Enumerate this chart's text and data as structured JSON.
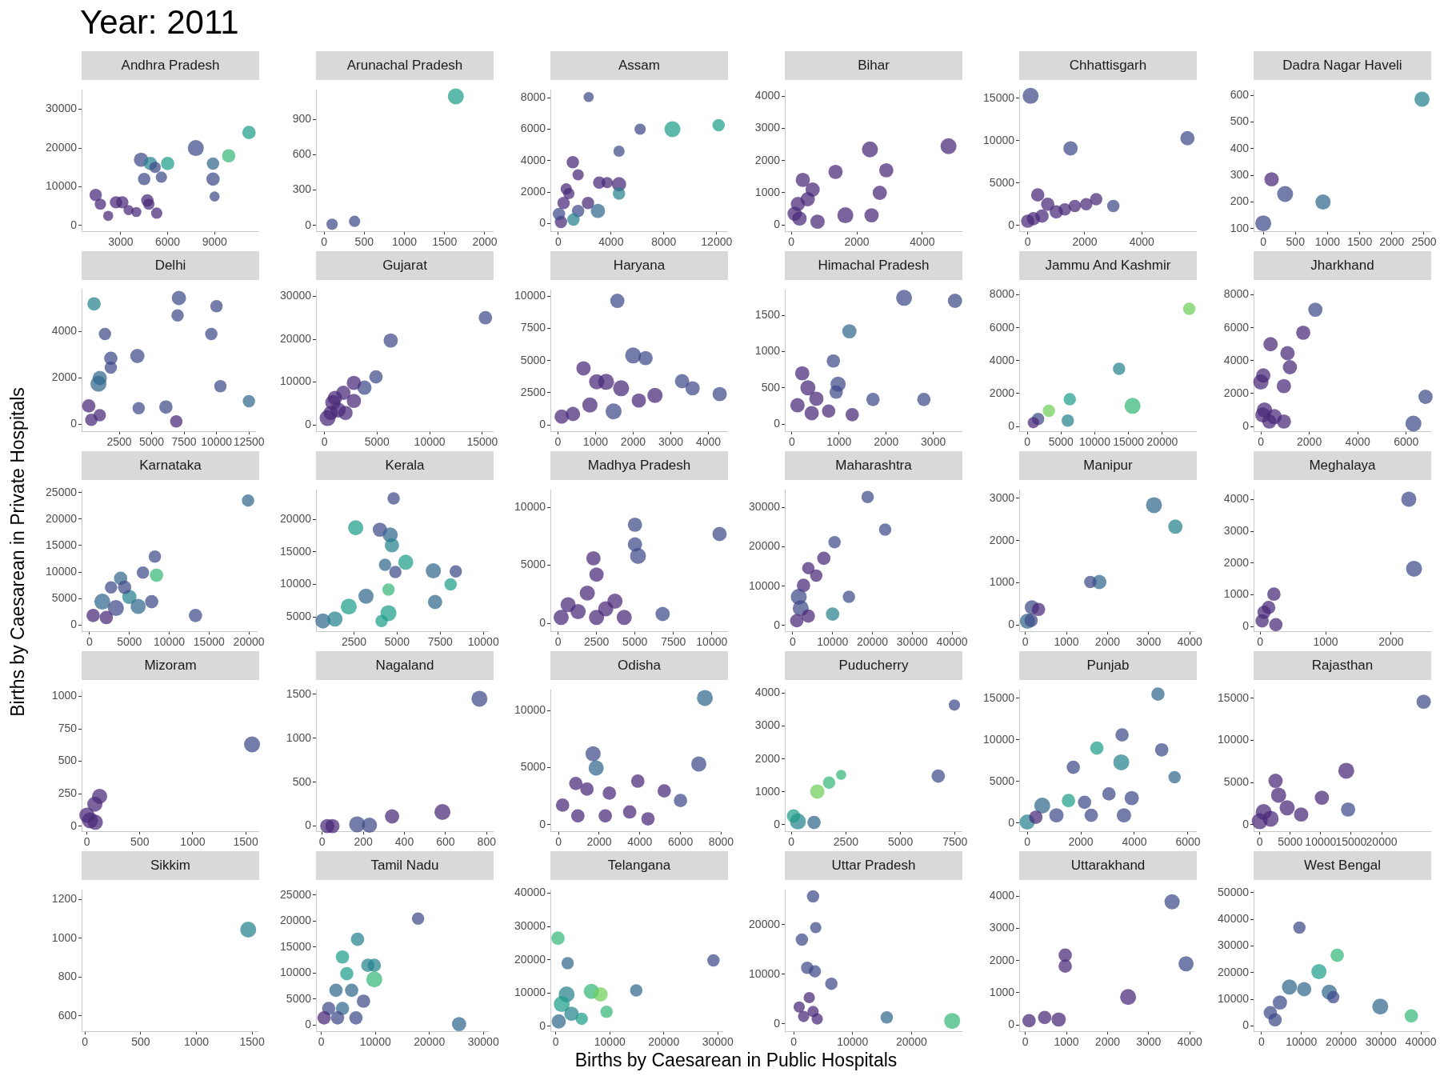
{
  "chart_data": [
    {
      "type": "other",
      "title": "Year: 2011",
      "xlabel": "Births by Caesarean in Public Hospitals",
      "ylabel": "Births by Caesarean in Private Hospitals"
    },
    {
      "type": "bubble",
      "title": "Andhra Pradesh",
      "xlim": [
        500,
        11800
      ],
      "ylim": [
        -1500,
        35000
      ],
      "x": [
        1400,
        1700,
        2200,
        2700,
        3100,
        3500,
        4000,
        4300,
        4500,
        4700,
        4900,
        5200,
        5300,
        5600,
        6000,
        7800,
        8900,
        9000,
        8900,
        9900,
        11200,
        4800
      ],
      "values": [
        7900,
        5500,
        2500,
        6000,
        6000,
        4000,
        3500,
        17000,
        12000,
        6500,
        16000,
        15000,
        3200,
        12500,
        16000,
        20000,
        12000,
        7500,
        16000,
        18000,
        24000,
        5500
      ],
      "sizes": [
        0.6,
        0.5,
        0.4,
        0.6,
        0.6,
        0.4,
        0.4,
        0.8,
        0.6,
        0.6,
        0.7,
        0.5,
        0.5,
        0.5,
        0.7,
        1,
        0.7,
        0.4,
        0.6,
        0.7,
        0.7,
        0.5
      ],
      "colors": [
        "#482878",
        "#482878",
        "#482878",
        "#482878",
        "#482878",
        "#482878",
        "#482878",
        "#3e4a89",
        "#3e4a89",
        "#482878",
        "#26828e",
        "#3e4a89",
        "#482878",
        "#3e4a89",
        "#1f9e89",
        "#3e4a89",
        "#3e4a89",
        "#3e4a89",
        "#31688e",
        "#35b779",
        "#1f9e89",
        "#482878"
      ],
      "xticks": [
        3000,
        6000,
        9000
      ],
      "yticks": [
        0,
        10000,
        20000,
        30000
      ]
    },
    {
      "type": "bubble",
      "title": "Arunachal Pradesh",
      "xlim": [
        -100,
        2100
      ],
      "ylim": [
        -50,
        1150
      ],
      "x": [
        100,
        380,
        1640
      ],
      "values": [
        10,
        35,
        1095
      ],
      "sizes": [
        0.5,
        0.5,
        1
      ],
      "colors": [
        "#3e4a89",
        "#3e4a89",
        "#1f9e89"
      ],
      "xticks": [
        0,
        500,
        1000,
        1500,
        2000
      ],
      "yticks": [
        0,
        300,
        600,
        900
      ]
    },
    {
      "type": "bubble",
      "title": "Assam",
      "xlim": [
        -600,
        12800
      ],
      "ylim": [
        -500,
        8500
      ],
      "x": [
        2300,
        6200,
        8650,
        12150,
        4600,
        1100,
        1500,
        3100,
        3700,
        4600,
        400,
        800,
        1500,
        2250,
        3000,
        200,
        1150,
        4600,
        600,
        50
      ],
      "values": [
        8050,
        6000,
        6000,
        6250,
        4600,
        3900,
        3100,
        2600,
        2600,
        2500,
        1300,
        1900,
        800,
        1300,
        800,
        100,
        250,
        1900,
        2200,
        600
      ],
      "sizes": [
        0.4,
        0.5,
        1,
        0.6,
        0.5,
        0.6,
        0.5,
        0.6,
        0.5,
        0.8,
        0.6,
        0.5,
        0.6,
        0.6,
        0.8,
        0.6,
        0.6,
        0.6,
        0.5,
        0.6
      ],
      "colors": [
        "#3e4a89",
        "#3e4a89",
        "#1f9e89",
        "#1f9e89",
        "#3e4a89",
        "#482878",
        "#482878",
        "#482878",
        "#482878",
        "#482878",
        "#482878",
        "#482878",
        "#3e4a89",
        "#482878",
        "#31688e",
        "#482878",
        "#26828e",
        "#26828e",
        "#482878",
        "#3e4a89"
      ],
      "xticks": [
        0,
        4000,
        8000,
        12000
      ],
      "yticks": [
        0,
        2000,
        4000,
        6000,
        8000
      ]
    },
    {
      "type": "bubble",
      "title": "Bihar",
      "xlim": [
        -200,
        5200
      ],
      "ylim": [
        -200,
        4200
      ],
      "x": [
        2400,
        4800,
        2900,
        1350,
        1650,
        2450,
        2700,
        350,
        200,
        500,
        250,
        100,
        650,
        800
      ],
      "values": [
        2350,
        2450,
        1700,
        1650,
        300,
        300,
        1000,
        1400,
        650,
        800,
        200,
        350,
        1100,
        100
      ],
      "sizes": [
        1,
        1,
        0.8,
        0.8,
        1,
        0.8,
        0.8,
        0.8,
        0.8,
        0.8,
        0.8,
        0.8,
        0.8,
        0.8
      ],
      "colors": [
        "#482878",
        "#482878",
        "#482878",
        "#482878",
        "#482878",
        "#482878",
        "#482878",
        "#482878",
        "#482878",
        "#482878",
        "#482878",
        "#482878",
        "#482878",
        "#482878"
      ],
      "xticks": [
        0,
        2000,
        4000
      ],
      "yticks": [
        0,
        1000,
        2000,
        3000,
        4000
      ]
    },
    {
      "type": "bubble",
      "title": "Chhattisgarh",
      "xlim": [
        -300,
        5900
      ],
      "ylim": [
        -700,
        16000
      ],
      "x": [
        100,
        1500,
        5600,
        3000,
        2400,
        350,
        700,
        1000,
        1300,
        200,
        1650,
        2050,
        0,
        500
      ],
      "values": [
        15300,
        9100,
        10300,
        2300,
        3100,
        3600,
        2500,
        1600,
        1900,
        800,
        2300,
        2500,
        500,
        1100
      ],
      "sizes": [
        1,
        0.8,
        0.8,
        0.6,
        0.6,
        0.7,
        0.7,
        0.7,
        0.6,
        0.7,
        0.6,
        0.6,
        0.7,
        0.7
      ],
      "colors": [
        "#3e4a89",
        "#3e4a89",
        "#3e4a89",
        "#3e4a89",
        "#482878",
        "#482878",
        "#482878",
        "#482878",
        "#482878",
        "#482878",
        "#482878",
        "#482878",
        "#482878",
        "#482878"
      ],
      "xticks": [
        0,
        2000,
        4000
      ],
      "yticks": [
        0,
        5000,
        10000,
        15000
      ]
    },
    {
      "type": "bubble",
      "title": "Dadra Nagar Haveli",
      "xlim": [
        -150,
        2600
      ],
      "ylim": [
        90,
        620
      ],
      "x": [
        0,
        130,
        340,
        930,
        2470
      ],
      "values": [
        120,
        285,
        230,
        200,
        585
      ],
      "sizes": [
        1,
        0.8,
        1,
        0.9,
        0.9
      ],
      "colors": [
        "#3e4a89",
        "#482878",
        "#3e4a89",
        "#31688e",
        "#26828e"
      ],
      "xticks": [
        0,
        500,
        1000,
        1500,
        2000,
        2500
      ],
      "yticks": [
        100,
        200,
        300,
        400,
        500,
        600
      ]
    },
    {
      "type": "bubble",
      "title": "Delhi",
      "xlim": [
        -400,
        13000
      ],
      "ylim": [
        -300,
        5800
      ],
      "x": [
        560,
        7100,
        7000,
        10000,
        9600,
        1400,
        1850,
        1850,
        900,
        1000,
        3900,
        10300,
        12500,
        4000,
        6100,
        6900,
        150,
        350,
        1000
      ],
      "values": [
        5200,
        5450,
        4700,
        5100,
        3900,
        3900,
        2850,
        2450,
        1750,
        2000,
        2950,
        1650,
        1000,
        700,
        750,
        130,
        800,
        200,
        400
      ],
      "sizes": [
        0.7,
        0.8,
        0.6,
        0.6,
        0.6,
        0.6,
        0.7,
        0.6,
        1,
        0.8,
        0.8,
        0.6,
        0.6,
        0.6,
        0.7,
        0.6,
        0.7,
        0.6,
        0.6
      ],
      "colors": [
        "#26828e",
        "#3e4a89",
        "#3e4a89",
        "#3e4a89",
        "#3e4a89",
        "#3e4a89",
        "#3e4a89",
        "#3e4a89",
        "#31688e",
        "#31688e",
        "#3e4a89",
        "#3e4a89",
        "#31688e",
        "#3e4a89",
        "#3e4a89",
        "#482878",
        "#482878",
        "#482878",
        "#482878"
      ],
      "xticks": [
        2500,
        5000,
        7500,
        10000,
        12500
      ],
      "yticks": [
        0,
        2000,
        4000
      ]
    },
    {
      "type": "bubble",
      "title": "Gujarat",
      "xlim": [
        -800,
        16000
      ],
      "ylim": [
        -1500,
        31500
      ],
      "x": [
        15300,
        6300,
        4900,
        3800,
        2800,
        1800,
        800,
        1300,
        300,
        2000,
        600,
        2800,
        1000
      ],
      "values": [
        25000,
        19700,
        11200,
        8700,
        9800,
        7500,
        5200,
        3500,
        1600,
        2800,
        2800,
        5600,
        6300
      ],
      "sizes": [
        0.7,
        0.8,
        0.7,
        0.8,
        0.8,
        0.8,
        0.9,
        0.9,
        1,
        0.8,
        0.8,
        0.8,
        0.8
      ],
      "colors": [
        "#3e4a89",
        "#3e4a89",
        "#3e4a89",
        "#3e4a89",
        "#482878",
        "#482878",
        "#482878",
        "#482878",
        "#482878",
        "#482878",
        "#482878",
        "#482878",
        "#482878"
      ],
      "xticks": [
        0,
        5000,
        10000,
        15000
      ],
      "yticks": [
        0,
        10000,
        20000,
        30000
      ]
    },
    {
      "type": "bubble",
      "title": "Haryana",
      "xlim": [
        -200,
        4500
      ],
      "ylim": [
        -500,
        10500
      ],
      "x": [
        1580,
        2000,
        2330,
        3300,
        3580,
        4300,
        680,
        1280,
        1680,
        2580,
        1480,
        850,
        400,
        100,
        2150,
        1030
      ],
      "values": [
        9650,
        5400,
        5200,
        3400,
        2850,
        2400,
        4400,
        3350,
        2850,
        2300,
        1050,
        1550,
        850,
        650,
        1900,
        3350
      ],
      "sizes": [
        0.8,
        1,
        0.8,
        0.8,
        0.8,
        0.8,
        0.8,
        1,
        1,
        0.9,
        1,
        0.9,
        0.8,
        0.8,
        0.8,
        0.9
      ],
      "colors": [
        "#3e4a89",
        "#3e4a89",
        "#3e4a89",
        "#3e4a89",
        "#3e4a89",
        "#3e4a89",
        "#482878",
        "#482878",
        "#482878",
        "#482878",
        "#3e4a89",
        "#482878",
        "#482878",
        "#482878",
        "#482878",
        "#482878"
      ],
      "xticks": [
        0,
        1000,
        2000,
        3000,
        4000
      ],
      "yticks": [
        0,
        2500,
        5000,
        7500,
        10000
      ]
    },
    {
      "type": "bubble",
      "title": "Himachal Pradesh",
      "xlim": [
        -150,
        3600
      ],
      "ylim": [
        -100,
        1850
      ],
      "x": [
        2380,
        3460,
        1220,
        880,
        940,
        980,
        340,
        220,
        420,
        780,
        1280,
        1720,
        2800,
        120,
        520
      ],
      "values": [
        1740,
        1700,
        1280,
        870,
        440,
        550,
        500,
        700,
        150,
        180,
        130,
        340,
        340,
        260,
        350
      ],
      "sizes": [
        1,
        0.8,
        0.8,
        0.7,
        0.7,
        0.9,
        0.9,
        0.8,
        0.8,
        0.7,
        0.7,
        0.7,
        0.7,
        0.8,
        0.8
      ],
      "colors": [
        "#3e4a89",
        "#3e4a89",
        "#31688e",
        "#3e4a89",
        "#3e4a89",
        "#3e4a89",
        "#482878",
        "#482878",
        "#482878",
        "#482878",
        "#482878",
        "#3e4a89",
        "#3e4a89",
        "#482878",
        "#482878"
      ],
      "xticks": [
        0,
        1000,
        2000,
        3000
      ],
      "yticks": [
        0,
        500,
        1000,
        1500
      ]
    },
    {
      "type": "bubble",
      "title": "Jammu And Kashmir",
      "xlim": [
        -1200,
        25000
      ],
      "ylim": [
        -300,
        8300
      ],
      "x": [
        24000,
        13600,
        15600,
        6300,
        6000,
        3200,
        1600,
        900
      ],
      "values": [
        7150,
        3500,
        1250,
        1650,
        350,
        950,
        450,
        230
      ],
      "sizes": [
        0.6,
        0.6,
        1,
        0.6,
        0.6,
        0.6,
        0.6,
        0.5
      ],
      "colors": [
        "#6ece58",
        "#26828e",
        "#35b779",
        "#1f9e89",
        "#26828e",
        "#6ece58",
        "#3e4a89",
        "#482878"
      ],
      "xticks": [
        0,
        5000,
        10000,
        15000,
        20000
      ],
      "yticks": [
        0,
        2000,
        4000,
        6000,
        8000
      ]
    },
    {
      "type": "bubble",
      "title": "Jharkhand",
      "xlim": [
        -300,
        7000
      ],
      "ylim": [
        -300,
        8300
      ],
      "x": [
        2250,
        1750,
        400,
        1100,
        1200,
        0,
        100,
        950,
        6800,
        6300,
        150,
        550,
        950,
        350,
        80
      ],
      "values": [
        7100,
        5700,
        5000,
        4450,
        3600,
        2700,
        3100,
        2450,
        1800,
        170,
        1000,
        600,
        300,
        300,
        700
      ],
      "sizes": [
        0.8,
        0.8,
        0.8,
        0.8,
        0.8,
        0.9,
        0.8,
        0.8,
        0.8,
        1,
        0.9,
        0.9,
        0.8,
        0.8,
        0.9
      ],
      "colors": [
        "#3e4a89",
        "#482878",
        "#482878",
        "#482878",
        "#482878",
        "#482878",
        "#482878",
        "#482878",
        "#3e4a89",
        "#3e4a89",
        "#482878",
        "#482878",
        "#482878",
        "#482878",
        "#482878"
      ],
      "xticks": [
        0,
        2000,
        4000,
        6000
      ],
      "yticks": [
        0,
        2000,
        4000,
        6000,
        8000
      ]
    },
    {
      "type": "bubble",
      "title": "Karnataka",
      "xlim": [
        -1000,
        21000
      ],
      "ylim": [
        -1200,
        25500
      ],
      "x": [
        19900,
        8200,
        8400,
        6700,
        13300,
        3900,
        2700,
        5000,
        1600,
        3300,
        450,
        6100,
        7800,
        4400,
        2100
      ],
      "values": [
        23500,
        12900,
        9400,
        9900,
        1800,
        8800,
        7100,
        5300,
        4400,
        3200,
        1800,
        3500,
        4400,
        7100,
        1400
      ],
      "sizes": [
        0.6,
        0.6,
        0.7,
        0.6,
        0.7,
        0.7,
        0.6,
        0.8,
        1,
        1,
        0.7,
        0.9,
        0.7,
        0.7,
        0.7
      ],
      "colors": [
        "#31688e",
        "#3e4a89",
        "#35b779",
        "#3e4a89",
        "#3e4a89",
        "#31688e",
        "#3e4a89",
        "#26828e",
        "#31688e",
        "#3e4a89",
        "#482878",
        "#31688e",
        "#3e4a89",
        "#3e4a89",
        "#482878"
      ],
      "xticks": [
        0,
        5000,
        10000,
        15000,
        20000
      ],
      "yticks": [
        0,
        5000,
        10000,
        15000,
        20000,
        25000
      ]
    },
    {
      "type": "bubble",
      "title": "Kerala",
      "xlim": [
        300,
        10300
      ],
      "ylim": [
        2800,
        24500
      ],
      "x": [
        4800,
        2600,
        4000,
        4600,
        4700,
        5500,
        4300,
        4900,
        8400,
        7100,
        3200,
        2200,
        4500,
        7200,
        8100,
        4500,
        700,
        1400,
        4100
      ],
      "values": [
        23200,
        18700,
        18400,
        17600,
        16000,
        13400,
        13000,
        11900,
        12000,
        12100,
        8200,
        6600,
        9200,
        7300,
        10000,
        5600,
        4400,
        4700,
        4400
      ],
      "sizes": [
        0.6,
        0.9,
        0.8,
        0.9,
        0.8,
        0.9,
        0.6,
        0.6,
        0.6,
        0.9,
        0.9,
        1,
        0.6,
        0.8,
        0.6,
        1,
        0.9,
        0.9,
        0.6
      ],
      "colors": [
        "#3e4a89",
        "#1f9e89",
        "#3e4a89",
        "#31688e",
        "#26828e",
        "#1f9e89",
        "#31688e",
        "#3e4a89",
        "#3e4a89",
        "#31688e",
        "#31688e",
        "#1f9e89",
        "#35b779",
        "#31688e",
        "#1f9e89",
        "#1f9e89",
        "#31688e",
        "#26828e",
        "#1f9e89"
      ],
      "xticks": [
        2500,
        5000,
        7500,
        10000
      ],
      "yticks": [
        5000,
        10000,
        15000,
        20000
      ]
    },
    {
      "type": "bubble",
      "title": "Madhya Pradesh",
      "xlim": [
        -500,
        11000
      ],
      "ylim": [
        -700,
        11500
      ],
      "x": [
        10500,
        5000,
        5200,
        5000,
        6800,
        2300,
        2500,
        1900,
        650,
        1300,
        3100,
        3700,
        200,
        4300,
        2500
      ],
      "values": [
        7700,
        8500,
        5800,
        6800,
        800,
        5600,
        4200,
        2600,
        1600,
        1000,
        1250,
        1900,
        500,
        500,
        500
      ],
      "sizes": [
        0.8,
        0.8,
        1,
        0.8,
        0.8,
        0.8,
        0.8,
        0.9,
        0.9,
        0.9,
        0.9,
        0.9,
        0.9,
        0.9,
        0.9
      ],
      "colors": [
        "#3e4a89",
        "#3e4a89",
        "#3e4a89",
        "#3e4a89",
        "#3e4a89",
        "#482878",
        "#482878",
        "#482878",
        "#482878",
        "#482878",
        "#482878",
        "#482878",
        "#482878",
        "#482878",
        "#482878"
      ],
      "xticks": [
        0,
        2500,
        5000,
        7500,
        10000
      ],
      "yticks": [
        0,
        5000,
        10000
      ]
    },
    {
      "type": "bubble",
      "title": "Maharashtra",
      "xlim": [
        -2000,
        42000
      ],
      "ylim": [
        -1500,
        34500
      ],
      "x": [
        18800,
        23200,
        10500,
        7800,
        3900,
        5900,
        2700,
        1500,
        2000,
        3900,
        10000,
        14100,
        1000
      ],
      "values": [
        32700,
        24400,
        21200,
        17100,
        14600,
        12700,
        10200,
        7300,
        4400,
        2400,
        2900,
        7300,
        1200
      ],
      "sizes": [
        0.6,
        0.6,
        0.6,
        0.7,
        0.6,
        0.6,
        0.7,
        1,
        1,
        0.7,
        0.7,
        0.6,
        0.7
      ],
      "colors": [
        "#3e4a89",
        "#3e4a89",
        "#3e4a89",
        "#482878",
        "#482878",
        "#482878",
        "#482878",
        "#3e4a89",
        "#3e4a89",
        "#482878",
        "#26828e",
        "#3e4a89",
        "#482878"
      ],
      "xticks": [
        0,
        10000,
        20000,
        30000,
        40000
      ],
      "yticks": [
        0,
        10000,
        20000,
        30000
      ]
    },
    {
      "type": "bubble",
      "title": "Manipur",
      "xlim": [
        -150,
        4100
      ],
      "ylim": [
        -150,
        3200
      ],
      "x": [
        3130,
        3650,
        1800,
        1580,
        160,
        320,
        50,
        140
      ],
      "values": [
        2840,
        2330,
        1020,
        1020,
        420,
        370,
        90,
        110
      ],
      "sizes": [
        1,
        0.8,
        0.8,
        0.6,
        0.8,
        0.7,
        0.9,
        0.7
      ],
      "colors": [
        "#31688e",
        "#26828e",
        "#31688e",
        "#3e4a89",
        "#3e4a89",
        "#482878",
        "#31688e",
        "#3e4a89"
      ],
      "xticks": [
        0,
        1000,
        2000,
        3000,
        4000
      ],
      "yticks": [
        0,
        1000,
        2000,
        3000
      ]
    },
    {
      "type": "bubble",
      "title": "Meghalaya",
      "xlim": [
        -100,
        2600
      ],
      "ylim": [
        -150,
        4300
      ],
      "x": [
        2270,
        2350,
        210,
        60,
        130,
        240,
        30
      ],
      "values": [
        4010,
        1820,
        1020,
        450,
        600,
        60,
        180
      ],
      "sizes": [
        0.9,
        1,
        0.7,
        0.7,
        0.7,
        0.7,
        0.7
      ],
      "colors": [
        "#3e4a89",
        "#3e4a89",
        "#482878",
        "#482878",
        "#482878",
        "#482878",
        "#482878"
      ],
      "xticks": [
        0,
        1000,
        2000
      ],
      "yticks": [
        0,
        1000,
        2000,
        3000,
        4000
      ]
    },
    {
      "type": "bubble",
      "title": "Mizoram",
      "xlim": [
        -50,
        1620
      ],
      "ylim": [
        -40,
        1050
      ],
      "x": [
        1560,
        120,
        75,
        30,
        80,
        0
      ],
      "values": [
        630,
        230,
        170,
        45,
        30,
        85
      ],
      "sizes": [
        1,
        0.9,
        0.9,
        1,
        0.9,
        0.9
      ],
      "colors": [
        "#3e4a89",
        "#482878",
        "#482878",
        "#482878",
        "#482878",
        "#482878"
      ],
      "xticks": [
        0,
        500,
        1000,
        1500
      ],
      "yticks": [
        0,
        250,
        500,
        750,
        1000
      ]
    },
    {
      "type": "bubble",
      "title": "Nagaland",
      "xlim": [
        -30,
        830
      ],
      "ylim": [
        -60,
        1550
      ],
      "x": [
        765,
        585,
        340,
        170,
        230,
        25,
        50
      ],
      "values": [
        1450,
        160,
        110,
        20,
        10,
        0,
        0
      ],
      "sizes": [
        1,
        1,
        0.8,
        1,
        0.9,
        0.8,
        0.8
      ],
      "colors": [
        "#3e4a89",
        "#482878",
        "#482878",
        "#3e4a89",
        "#3e4a89",
        "#482878",
        "#482878"
      ],
      "xticks": [
        0,
        200,
        400,
        600,
        800
      ],
      "yticks": [
        0,
        500,
        1000,
        1500
      ]
    },
    {
      "type": "bubble",
      "title": "Odisha",
      "xlim": [
        -400,
        8000
      ],
      "ylim": [
        -600,
        11800
      ],
      "x": [
        7200,
        6900,
        1700,
        1850,
        850,
        1400,
        2500,
        3900,
        5200,
        6000,
        200,
        950,
        2300,
        3500,
        4400
      ],
      "values": [
        11100,
        5300,
        6200,
        4950,
        3600,
        3100,
        2750,
        3800,
        2950,
        2100,
        1700,
        750,
        750,
        1100,
        500
      ],
      "sizes": [
        1,
        0.9,
        0.9,
        0.9,
        0.7,
        0.7,
        0.7,
        0.7,
        0.7,
        0.7,
        0.7,
        0.7,
        0.7,
        0.7,
        0.7
      ],
      "colors": [
        "#31688e",
        "#3e4a89",
        "#3e4a89",
        "#31688e",
        "#482878",
        "#482878",
        "#482878",
        "#482878",
        "#482878",
        "#3e4a89",
        "#482878",
        "#482878",
        "#482878",
        "#482878",
        "#482878"
      ],
      "xticks": [
        0,
        2000,
        4000,
        6000,
        8000
      ],
      "yticks": [
        0,
        5000,
        10000
      ]
    },
    {
      "type": "bubble",
      "title": "Puducherry",
      "xlim": [
        -300,
        7800
      ],
      "ylim": [
        -200,
        4100
      ],
      "x": [
        7470,
        6730,
        1190,
        1730,
        2280,
        300,
        100,
        1040
      ],
      "values": [
        3640,
        1480,
        1010,
        1280,
        1520,
        100,
        270,
        70
      ],
      "sizes": [
        0.5,
        0.7,
        0.8,
        0.6,
        0.4,
        1,
        0.7,
        0.7
      ],
      "colors": [
        "#3e4a89",
        "#3e4a89",
        "#6ece58",
        "#35b779",
        "#35b779",
        "#26828e",
        "#1f9e89",
        "#31688e"
      ],
      "xticks": [
        0,
        2500,
        5000,
        7500
      ],
      "yticks": [
        0,
        1000,
        2000,
        3000,
        4000
      ]
    },
    {
      "type": "bubble",
      "title": "Punjab",
      "xlim": [
        -300,
        6300
      ],
      "ylim": [
        -1000,
        16000
      ],
      "x": [
        4880,
        3540,
        5020,
        2600,
        3510,
        5500,
        1720,
        3900,
        3050,
        0,
        560,
        1090,
        2390,
        3610,
        2140,
        1540,
        320
      ],
      "values": [
        15500,
        10600,
        8800,
        9000,
        7300,
        5500,
        6700,
        3000,
        3500,
        120,
        2100,
        930,
        930,
        930,
        2500,
        2700,
        700
      ],
      "sizes": [
        0.7,
        0.7,
        0.7,
        0.7,
        1,
        0.6,
        0.7,
        0.8,
        0.7,
        0.9,
        1,
        0.8,
        0.7,
        0.8,
        0.7,
        0.7,
        0.7
      ],
      "colors": [
        "#31688e",
        "#3e4a89",
        "#3e4a89",
        "#1f9e89",
        "#26828e",
        "#31688e",
        "#3e4a89",
        "#3e4a89",
        "#3e4a89",
        "#26828e",
        "#31688e",
        "#3e4a89",
        "#3e4a89",
        "#3e4a89",
        "#3e4a89",
        "#1f9e89",
        "#482878"
      ],
      "xticks": [
        0,
        2000,
        4000,
        6000
      ],
      "yticks": [
        0,
        5000,
        10000,
        15000
      ]
    },
    {
      "type": "bubble",
      "title": "Rajasthan",
      "xlim": [
        -1000,
        28000
      ],
      "ylim": [
        -800,
        16000
      ],
      "x": [
        26900,
        14200,
        10200,
        14500,
        2600,
        3100,
        4500,
        650,
        1800,
        6800,
        0
      ],
      "values": [
        14600,
        6400,
        3200,
        1800,
        5200,
        3500,
        2000,
        1500,
        700,
        1200,
        400
      ],
      "sizes": [
        0.8,
        1,
        0.8,
        0.8,
        0.8,
        0.9,
        0.9,
        1,
        1,
        0.8,
        1
      ],
      "colors": [
        "#3e4a89",
        "#482878",
        "#482878",
        "#3e4a89",
        "#482878",
        "#482878",
        "#482878",
        "#482878",
        "#482878",
        "#482878",
        "#482878"
      ],
      "xticks": [
        0,
        5000,
        10000,
        15000,
        20000
      ],
      "yticks": [
        0,
        5000,
        10000,
        15000
      ]
    },
    {
      "type": "bubble",
      "title": "Sikkim",
      "xlim": [
        -30,
        1550
      ],
      "ylim": [
        520,
        1250
      ],
      "x": [
        1465
      ],
      "values": [
        1045
      ],
      "sizes": [
        1
      ],
      "colors": [
        "#26828e"
      ],
      "xticks": [
        0,
        500,
        1000,
        1500
      ],
      "yticks": [
        600,
        800,
        1000,
        1200
      ]
    },
    {
      "type": "bubble",
      "title": "Tamil Nadu",
      "xlim": [
        -1000,
        31000
      ],
      "ylim": [
        -1200,
        26000
      ],
      "x": [
        17900,
        25500,
        6700,
        3900,
        9800,
        8600,
        9800,
        4700,
        2700,
        5600,
        7800,
        1350,
        3900,
        500,
        3000,
        6400
      ],
      "values": [
        20500,
        200,
        16500,
        13100,
        11500,
        11500,
        8800,
        9900,
        6700,
        6700,
        4600,
        3200,
        3200,
        1400,
        1400,
        1400
      ],
      "sizes": [
        0.6,
        0.8,
        0.7,
        0.7,
        0.7,
        0.7,
        1,
        0.7,
        0.7,
        0.7,
        0.7,
        0.7,
        0.7,
        0.7,
        0.7,
        0.7
      ],
      "colors": [
        "#3e4a89",
        "#31688e",
        "#26828e",
        "#1f9e89",
        "#26828e",
        "#26828e",
        "#35b779",
        "#1f9e89",
        "#31688e",
        "#31688e",
        "#3e4a89",
        "#3e4a89",
        "#31688e",
        "#482878",
        "#3e4a89",
        "#3e4a89"
      ],
      "xticks": [
        0,
        10000,
        20000,
        30000
      ],
      "yticks": [
        0,
        5000,
        10000,
        15000,
        20000,
        25000
      ]
    },
    {
      "type": "bubble",
      "title": "Telangana",
      "xlim": [
        -1000,
        31000
      ],
      "ylim": [
        -1500,
        41000
      ],
      "x": [
        400,
        2200,
        29200,
        14900,
        6600,
        8300,
        2000,
        1100,
        2900,
        550,
        4800,
        9400
      ],
      "values": [
        26500,
        19000,
        19800,
        10800,
        10500,
        9600,
        9600,
        6700,
        3800,
        1500,
        2300,
        4400
      ],
      "sizes": [
        0.7,
        0.6,
        0.6,
        0.6,
        0.9,
        0.8,
        1,
        1,
        0.8,
        0.8,
        0.6,
        0.6
      ],
      "colors": [
        "#35b779",
        "#31688e",
        "#3e4a89",
        "#31688e",
        "#35b779",
        "#6ece58",
        "#26828e",
        "#1f9e89",
        "#26828e",
        "#31688e",
        "#1f9e89",
        "#35b779"
      ],
      "xticks": [
        0,
        10000,
        20000,
        30000
      ],
      "yticks": [
        0,
        10000,
        20000,
        30000,
        40000
      ]
    },
    {
      "type": "bubble",
      "title": "Uttar Pradesh",
      "xlim": [
        -1500,
        28500
      ],
      "ylim": [
        -1500,
        27000
      ],
      "x": [
        3300,
        1400,
        3750,
        2300,
        3600,
        6400,
        15800,
        26900,
        2650,
        940,
        3300,
        4000,
        1700
      ],
      "values": [
        25700,
        17000,
        19400,
        11300,
        10600,
        8100,
        1300,
        600,
        5300,
        3400,
        2500,
        1000,
        1500
      ],
      "sizes": [
        0.6,
        0.6,
        0.5,
        0.6,
        0.6,
        0.6,
        0.6,
        1,
        0.5,
        0.5,
        0.5,
        0.5,
        0.5
      ],
      "colors": [
        "#3e4a89",
        "#3e4a89",
        "#3e4a89",
        "#3e4a89",
        "#3e4a89",
        "#3e4a89",
        "#31688e",
        "#35b779",
        "#482878",
        "#482878",
        "#482878",
        "#482878",
        "#482878"
      ],
      "xticks": [
        0,
        10000,
        20000
      ],
      "yticks": [
        0,
        10000,
        20000
      ]
    },
    {
      "type": "bubble",
      "title": "Uttarakhand",
      "xlim": [
        -150,
        4100
      ],
      "ylim": [
        -200,
        4200
      ],
      "x": [
        3570,
        3910,
        2500,
        970,
        970,
        810,
        470,
        90
      ],
      "values": [
        3830,
        1900,
        870,
        1830,
        2170,
        170,
        230,
        130
      ],
      "sizes": [
        0.9,
        0.9,
        1,
        0.7,
        0.7,
        0.8,
        0.7,
        0.7
      ],
      "colors": [
        "#3e4a89",
        "#3e4a89",
        "#482878",
        "#482878",
        "#482878",
        "#482878",
        "#482878",
        "#482878"
      ],
      "xticks": [
        0,
        1000,
        2000,
        3000,
        4000
      ],
      "yticks": [
        0,
        1000,
        2000,
        3000,
        4000
      ]
    },
    {
      "type": "bubble",
      "title": "West Bengal",
      "xlim": [
        -2000,
        42000
      ],
      "ylim": [
        -2000,
        51000
      ],
      "x": [
        9500,
        19000,
        14400,
        17000,
        18000,
        29800,
        37600,
        7000,
        10700,
        4600,
        2200,
        3400
      ],
      "values": [
        36900,
        26500,
        20400,
        12700,
        10800,
        7300,
        3800,
        14600,
        13800,
        8800,
        5000,
        2300
      ],
      "sizes": [
        0.6,
        0.7,
        0.9,
        0.9,
        0.6,
        1,
        0.7,
        0.9,
        0.8,
        0.8,
        0.7,
        0.7
      ],
      "colors": [
        "#3e4a89",
        "#35b779",
        "#1f9e89",
        "#31688e",
        "#3e4a89",
        "#31688e",
        "#35b779",
        "#31688e",
        "#31688e",
        "#3e4a89",
        "#3e4a89",
        "#3e4a89"
      ],
      "xticks": [
        0,
        10000,
        20000,
        30000,
        40000
      ],
      "yticks": [
        0,
        10000,
        20000,
        30000,
        40000,
        50000
      ]
    }
  ]
}
